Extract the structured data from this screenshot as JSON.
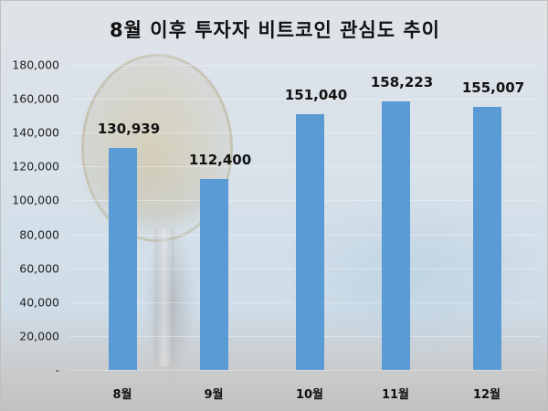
{
  "chart_data": {
    "type": "bar",
    "title": "8월 이후 투자자 비트코인 관심도 추이",
    "categories": [
      "8월",
      "9월",
      "10월",
      "11월",
      "12월"
    ],
    "values": [
      130939,
      112400,
      151040,
      158223,
      155007
    ],
    "value_labels": [
      "130,939",
      "112,400",
      "151,040",
      "158,223",
      "155,007"
    ],
    "xlabel": "",
    "ylabel": "",
    "ylim": [
      0,
      180000
    ],
    "yticks": [
      0,
      20000,
      40000,
      60000,
      80000,
      100000,
      120000,
      140000,
      160000,
      180000
    ],
    "ytick_labels": [
      "-",
      "20,000",
      "40,000",
      "60,000",
      "80,000",
      "100,000",
      "120,000",
      "140,000",
      "160,000",
      "180,000"
    ],
    "grid": true,
    "legend": "none",
    "bar_color": "#5b9bd5",
    "background": "bitcoin photo (faded)"
  }
}
